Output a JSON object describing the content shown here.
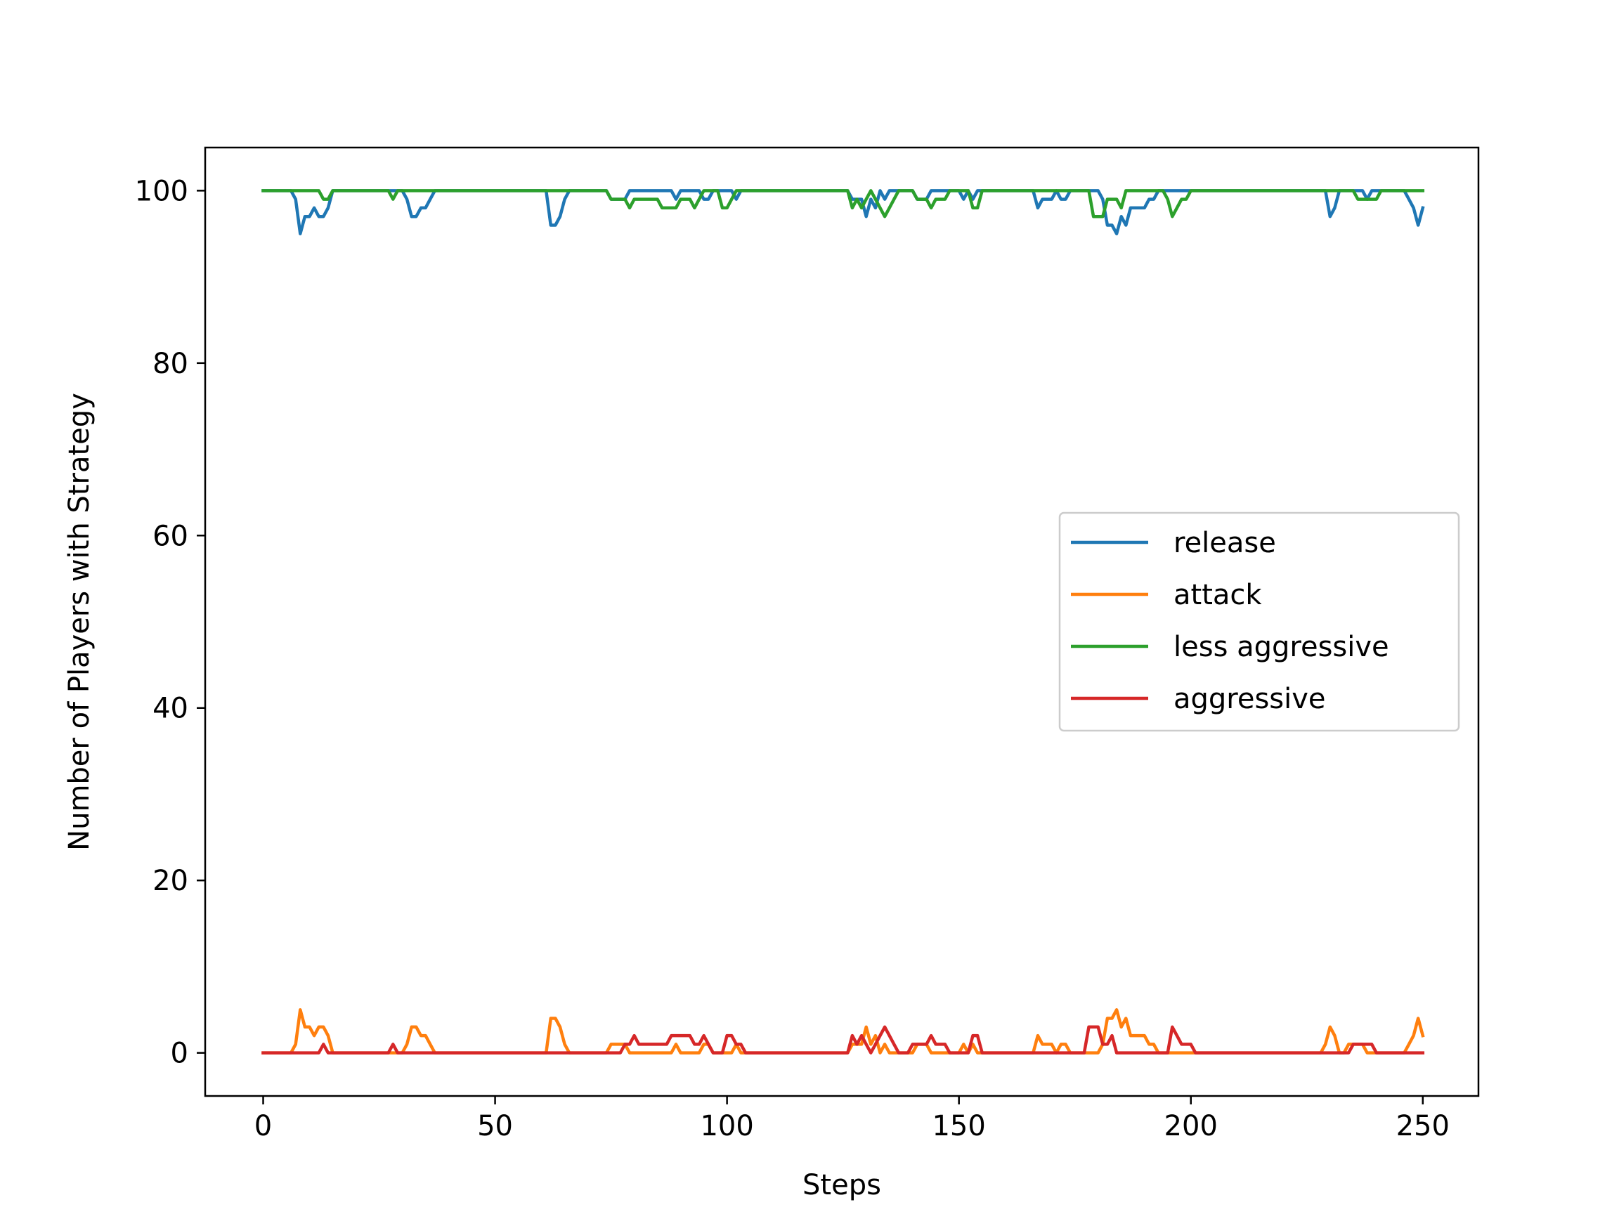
{
  "chart_data": {
    "type": "line",
    "xlabel": "Steps",
    "ylabel": "Number of Players with Strategy",
    "xlim": [
      -12.5,
      262
    ],
    "ylim": [
      -5,
      105
    ],
    "xticks": [
      0,
      50,
      100,
      150,
      200,
      250
    ],
    "yticks": [
      0,
      20,
      40,
      60,
      80,
      100
    ],
    "grid": false,
    "legend_position": "center-right",
    "series": [
      {
        "name": "release",
        "color": "#1f77b4",
        "points": [
          [
            0,
            100
          ],
          [
            6,
            100
          ],
          [
            7,
            99
          ],
          [
            8,
            95
          ],
          [
            9,
            97
          ],
          [
            10,
            97
          ],
          [
            11,
            98
          ],
          [
            12,
            97
          ],
          [
            13,
            97
          ],
          [
            14,
            98
          ],
          [
            15,
            100
          ],
          [
            29,
            100
          ],
          [
            30,
            100
          ],
          [
            31,
            99
          ],
          [
            32,
            97
          ],
          [
            33,
            97
          ],
          [
            34,
            98
          ],
          [
            35,
            98
          ],
          [
            36,
            99
          ],
          [
            37,
            100
          ],
          [
            61,
            100
          ],
          [
            62,
            96
          ],
          [
            63,
            96
          ],
          [
            64,
            97
          ],
          [
            65,
            99
          ],
          [
            66,
            100
          ],
          [
            74,
            100
          ],
          [
            75,
            99
          ],
          [
            78,
            99
          ],
          [
            79,
            100
          ],
          [
            88,
            100
          ],
          [
            89,
            99
          ],
          [
            90,
            100
          ],
          [
            94,
            100
          ],
          [
            95,
            99
          ],
          [
            96,
            99
          ],
          [
            97,
            100
          ],
          [
            101,
            100
          ],
          [
            102,
            99
          ],
          [
            103,
            100
          ],
          [
            126,
            100
          ],
          [
            127,
            99
          ],
          [
            128,
            99
          ],
          [
            129,
            99
          ],
          [
            130,
            97
          ],
          [
            131,
            99
          ],
          [
            132,
            98
          ],
          [
            133,
            100
          ],
          [
            134,
            99
          ],
          [
            135,
            100
          ],
          [
            140,
            100
          ],
          [
            141,
            99
          ],
          [
            143,
            99
          ],
          [
            144,
            100
          ],
          [
            150,
            100
          ],
          [
            151,
            99
          ],
          [
            152,
            100
          ],
          [
            153,
            99
          ],
          [
            154,
            100
          ],
          [
            166,
            100
          ],
          [
            167,
            98
          ],
          [
            168,
            99
          ],
          [
            170,
            99
          ],
          [
            171,
            100
          ],
          [
            172,
            99
          ],
          [
            173,
            99
          ],
          [
            174,
            100
          ],
          [
            180,
            100
          ],
          [
            181,
            99
          ],
          [
            182,
            96
          ],
          [
            183,
            96
          ],
          [
            184,
            95
          ],
          [
            185,
            97
          ],
          [
            186,
            96
          ],
          [
            187,
            98
          ],
          [
            190,
            98
          ],
          [
            191,
            99
          ],
          [
            192,
            99
          ],
          [
            193,
            100
          ],
          [
            229,
            100
          ],
          [
            230,
            97
          ],
          [
            231,
            98
          ],
          [
            232,
            100
          ],
          [
            237,
            100
          ],
          [
            238,
            99
          ],
          [
            239,
            100
          ],
          [
            246,
            100
          ],
          [
            247,
            99
          ],
          [
            248,
            98
          ],
          [
            249,
            96
          ],
          [
            250,
            98
          ]
        ]
      },
      {
        "name": "attack",
        "color": "#ff7f0e",
        "points": [
          [
            0,
            0
          ],
          [
            6,
            0
          ],
          [
            7,
            1
          ],
          [
            8,
            5
          ],
          [
            9,
            3
          ],
          [
            10,
            3
          ],
          [
            11,
            2
          ],
          [
            12,
            3
          ],
          [
            13,
            3
          ],
          [
            14,
            2
          ],
          [
            15,
            0
          ],
          [
            30,
            0
          ],
          [
            31,
            1
          ],
          [
            32,
            3
          ],
          [
            33,
            3
          ],
          [
            34,
            2
          ],
          [
            35,
            2
          ],
          [
            36,
            1
          ],
          [
            37,
            0
          ],
          [
            61,
            0
          ],
          [
            62,
            4
          ],
          [
            63,
            4
          ],
          [
            64,
            3
          ],
          [
            65,
            1
          ],
          [
            66,
            0
          ],
          [
            74,
            0
          ],
          [
            75,
            1
          ],
          [
            78,
            1
          ],
          [
            79,
            0
          ],
          [
            88,
            0
          ],
          [
            89,
            1
          ],
          [
            90,
            0
          ],
          [
            94,
            0
          ],
          [
            95,
            1
          ],
          [
            96,
            1
          ],
          [
            97,
            0
          ],
          [
            101,
            0
          ],
          [
            102,
            1
          ],
          [
            103,
            0
          ],
          [
            126,
            0
          ],
          [
            127,
            1
          ],
          [
            128,
            1
          ],
          [
            129,
            1
          ],
          [
            130,
            3
          ],
          [
            131,
            1
          ],
          [
            132,
            2
          ],
          [
            133,
            0
          ],
          [
            134,
            1
          ],
          [
            135,
            0
          ],
          [
            140,
            0
          ],
          [
            141,
            1
          ],
          [
            143,
            1
          ],
          [
            144,
            0
          ],
          [
            150,
            0
          ],
          [
            151,
            1
          ],
          [
            152,
            0
          ],
          [
            153,
            1
          ],
          [
            154,
            0
          ],
          [
            166,
            0
          ],
          [
            167,
            2
          ],
          [
            168,
            1
          ],
          [
            170,
            1
          ],
          [
            171,
            0
          ],
          [
            172,
            1
          ],
          [
            173,
            1
          ],
          [
            174,
            0
          ],
          [
            180,
            0
          ],
          [
            181,
            1
          ],
          [
            182,
            4
          ],
          [
            183,
            4
          ],
          [
            184,
            5
          ],
          [
            185,
            3
          ],
          [
            186,
            4
          ],
          [
            187,
            2
          ],
          [
            190,
            2
          ],
          [
            191,
            1
          ],
          [
            192,
            1
          ],
          [
            193,
            0
          ],
          [
            228,
            0
          ],
          [
            229,
            1
          ],
          [
            230,
            3
          ],
          [
            231,
            2
          ],
          [
            232,
            0
          ],
          [
            233,
            0
          ],
          [
            234,
            1
          ],
          [
            237,
            1
          ],
          [
            238,
            0
          ],
          [
            246,
            0
          ],
          [
            247,
            1
          ],
          [
            248,
            2
          ],
          [
            249,
            4
          ],
          [
            250,
            2
          ]
        ]
      },
      {
        "name": "less aggressive",
        "color": "#2ca02c",
        "points": [
          [
            0,
            100
          ],
          [
            12,
            100
          ],
          [
            13,
            99
          ],
          [
            14,
            99
          ],
          [
            15,
            100
          ],
          [
            27,
            100
          ],
          [
            28,
            99
          ],
          [
            29,
            100
          ],
          [
            74,
            100
          ],
          [
            75,
            99
          ],
          [
            77,
            99
          ],
          [
            78,
            99
          ],
          [
            79,
            98
          ],
          [
            80,
            99
          ],
          [
            85,
            99
          ],
          [
            86,
            98
          ],
          [
            89,
            98
          ],
          [
            90,
            99
          ],
          [
            92,
            99
          ],
          [
            93,
            98
          ],
          [
            94,
            99
          ],
          [
            95,
            100
          ],
          [
            98,
            100
          ],
          [
            99,
            98
          ],
          [
            100,
            98
          ],
          [
            101,
            99
          ],
          [
            102,
            100
          ],
          [
            126,
            100
          ],
          [
            127,
            98
          ],
          [
            128,
            99
          ],
          [
            129,
            98
          ],
          [
            130,
            99
          ],
          [
            131,
            100
          ],
          [
            132,
            99
          ],
          [
            133,
            98
          ],
          [
            134,
            97
          ],
          [
            135,
            98
          ],
          [
            136,
            99
          ],
          [
            137,
            100
          ],
          [
            140,
            100
          ],
          [
            141,
            99
          ],
          [
            143,
            99
          ],
          [
            144,
            98
          ],
          [
            145,
            99
          ],
          [
            147,
            99
          ],
          [
            148,
            100
          ],
          [
            152,
            100
          ],
          [
            153,
            98
          ],
          [
            154,
            98
          ],
          [
            155,
            100
          ],
          [
            178,
            100
          ],
          [
            179,
            97
          ],
          [
            181,
            97
          ],
          [
            182,
            99
          ],
          [
            184,
            99
          ],
          [
            185,
            98
          ],
          [
            186,
            100
          ],
          [
            194,
            100
          ],
          [
            195,
            99
          ],
          [
            196,
            97
          ],
          [
            197,
            98
          ],
          [
            198,
            99
          ],
          [
            199,
            99
          ],
          [
            200,
            100
          ],
          [
            235,
            100
          ],
          [
            236,
            99
          ],
          [
            240,
            99
          ],
          [
            241,
            100
          ],
          [
            250,
            100
          ]
        ]
      },
      {
        "name": "aggressive",
        "color": "#d62728",
        "points": [
          [
            0,
            0
          ],
          [
            12,
            0
          ],
          [
            13,
            1
          ],
          [
            14,
            0
          ],
          [
            27,
            0
          ],
          [
            28,
            1
          ],
          [
            29,
            0
          ],
          [
            77,
            0
          ],
          [
            78,
            1
          ],
          [
            79,
            1
          ],
          [
            80,
            2
          ],
          [
            81,
            1
          ],
          [
            87,
            1
          ],
          [
            88,
            2
          ],
          [
            92,
            2
          ],
          [
            93,
            1
          ],
          [
            94,
            1
          ],
          [
            95,
            2
          ],
          [
            96,
            1
          ],
          [
            97,
            0
          ],
          [
            99,
            0
          ],
          [
            100,
            2
          ],
          [
            101,
            2
          ],
          [
            102,
            1
          ],
          [
            103,
            1
          ],
          [
            104,
            0
          ],
          [
            126,
            0
          ],
          [
            127,
            2
          ],
          [
            128,
            1
          ],
          [
            129,
            2
          ],
          [
            130,
            1
          ],
          [
            131,
            0
          ],
          [
            132,
            1
          ],
          [
            133,
            2
          ],
          [
            134,
            3
          ],
          [
            135,
            2
          ],
          [
            136,
            1
          ],
          [
            137,
            0
          ],
          [
            139,
            0
          ],
          [
            140,
            1
          ],
          [
            143,
            1
          ],
          [
            144,
            2
          ],
          [
            145,
            1
          ],
          [
            147,
            1
          ],
          [
            148,
            0
          ],
          [
            152,
            0
          ],
          [
            153,
            2
          ],
          [
            154,
            2
          ],
          [
            155,
            0
          ],
          [
            177,
            0
          ],
          [
            178,
            3
          ],
          [
            180,
            3
          ],
          [
            181,
            1
          ],
          [
            182,
            1
          ],
          [
            183,
            2
          ],
          [
            184,
            0
          ],
          [
            195,
            0
          ],
          [
            196,
            3
          ],
          [
            197,
            2
          ],
          [
            198,
            1
          ],
          [
            200,
            1
          ],
          [
            201,
            0
          ],
          [
            234,
            0
          ],
          [
            235,
            1
          ],
          [
            239,
            1
          ],
          [
            240,
            0
          ],
          [
            250,
            0
          ]
        ]
      }
    ]
  }
}
